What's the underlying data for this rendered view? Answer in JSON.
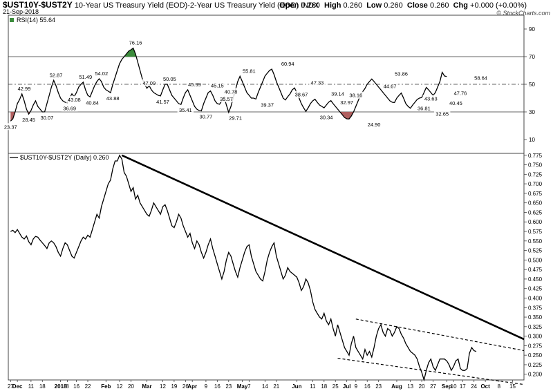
{
  "header": {
    "symbol": "$UST10Y-$UST2Y",
    "description": "10-Year US Treasury Yield (EOD)-2-Year US Treasury Yield (EOD)",
    "exchange": "INDX",
    "date": "21-Sep-2018",
    "open_label": "Open",
    "open": "0.260",
    "high_label": "High",
    "high": "0.260",
    "low_label": "Low",
    "low": "0.260",
    "close_label": "Close",
    "close": "0.260",
    "chg_label": "Chg",
    "chg": "+0.000 (+0.00%)",
    "brand": "© StockCharts.com"
  },
  "rsi_panel": {
    "legend": "RSI(14) 55.64",
    "colors": {
      "line": "#000000",
      "overbought": "#3c8c3c",
      "oversold": "#b06060"
    }
  },
  "price_panel": {
    "legend": "$UST10Y-$UST2Y (Daily) 0.260"
  },
  "chart_data": [
    {
      "type": "line",
      "title": "RSI(14) 55.64",
      "ylim": [
        0,
        100
      ],
      "y_ticks": [
        10,
        30,
        50,
        70,
        90
      ],
      "reference_lines": [
        30,
        50,
        70
      ],
      "grid": false,
      "annotations": [
        {
          "x": 0,
          "value": 23.37,
          "text": "23.37"
        },
        {
          "x": 6,
          "value": 42.99,
          "text": "42.99"
        },
        {
          "x": 8,
          "value": 28.45,
          "text": "28.45"
        },
        {
          "x": 16,
          "value": 30.07,
          "text": "30.07"
        },
        {
          "x": 20,
          "value": 52.87,
          "text": "52.87"
        },
        {
          "x": 26,
          "value": 36.69,
          "text": "36.69"
        },
        {
          "x": 28,
          "value": 43.08,
          "text": "43.08"
        },
        {
          "x": 33,
          "value": 51.49,
          "text": "51.49"
        },
        {
          "x": 36,
          "value": 40.84,
          "text": "40.84"
        },
        {
          "x": 40,
          "value": 54.02,
          "text": "54.02"
        },
        {
          "x": 45,
          "value": 43.88,
          "text": "43.88"
        },
        {
          "x": 55,
          "value": 76.16,
          "text": "76.16"
        },
        {
          "x": 61,
          "value": 47.09,
          "text": "47.09"
        },
        {
          "x": 67,
          "value": 41.57,
          "text": "41.57"
        },
        {
          "x": 70,
          "value": 50.05,
          "text": "50.05"
        },
        {
          "x": 77,
          "value": 35.41,
          "text": "35.41"
        },
        {
          "x": 81,
          "value": 45.99,
          "text": "45.99"
        },
        {
          "x": 86,
          "value": 30.77,
          "text": "30.77"
        },
        {
          "x": 91,
          "value": 45.15,
          "text": "45.15"
        },
        {
          "x": 95,
          "value": 35.57,
          "text": "35.57"
        },
        {
          "x": 97,
          "value": 40.78,
          "text": "40.78"
        },
        {
          "x": 99,
          "value": 29.71,
          "text": "29.71"
        },
        {
          "x": 105,
          "value": 55.81,
          "text": "55.81"
        },
        {
          "x": 113,
          "value": 39.37,
          "text": "39.37"
        },
        {
          "x": 122,
          "value": 60.94,
          "text": "60.94"
        },
        {
          "x": 128,
          "value": 38.67,
          "text": "38.67"
        },
        {
          "x": 135,
          "value": 47.33,
          "text": "47.33"
        },
        {
          "x": 139,
          "value": 30.34,
          "text": "30.34"
        },
        {
          "x": 144,
          "value": 39.14,
          "text": "39.14"
        },
        {
          "x": 148,
          "value": 32.97,
          "text": "32.97"
        },
        {
          "x": 152,
          "value": 38.16,
          "text": "38.16"
        },
        {
          "x": 160,
          "value": 24.9,
          "text": "24.90"
        },
        {
          "x": 167,
          "value": 44.67,
          "text": "44.67"
        },
        {
          "x": 172,
          "value": 53.86,
          "text": "53.86"
        },
        {
          "x": 182,
          "value": 36.81,
          "text": "36.81"
        },
        {
          "x": 185,
          "value": 43.63,
          "text": "43.63"
        },
        {
          "x": 190,
          "value": 32.65,
          "text": "32.65"
        },
        {
          "x": 196,
          "value": 40.45,
          "text": "40.45"
        },
        {
          "x": 198,
          "value": 47.76,
          "text": "47.76"
        },
        {
          "x": 207,
          "value": 58.64,
          "text": "58.64"
        }
      ],
      "series": [
        {
          "values": [
            23.37,
            25,
            30,
            36,
            39,
            42.99,
            38,
            32,
            28.45,
            31,
            35,
            38,
            34,
            32,
            30,
            30.07,
            36,
            42,
            48,
            52.87,
            49,
            44,
            40,
            38,
            37,
            36.69,
            40,
            43.08,
            41,
            44,
            48,
            50,
            51.49,
            46,
            42,
            40.84,
            45,
            49,
            52,
            54.02,
            52,
            48,
            46,
            45,
            43.88,
            50,
            55,
            60,
            65,
            68,
            70,
            72,
            74,
            75,
            76.16,
            72,
            66,
            60,
            54,
            50,
            47.09,
            49,
            46,
            44,
            43,
            42,
            41.57,
            46,
            50,
            50.05,
            46,
            42,
            40,
            38,
            36,
            35.41,
            40,
            44,
            45.99,
            42,
            38,
            34,
            32,
            31,
            30.77,
            36,
            40,
            44,
            45.15,
            42,
            38,
            36,
            35.57,
            38,
            40.78,
            35,
            29.71,
            34,
            40,
            46,
            52,
            55.81,
            52,
            48,
            44,
            42,
            40,
            40,
            39.37,
            44,
            48,
            52,
            56,
            58,
            60,
            60.94,
            57,
            52,
            48,
            44,
            40,
            38.67,
            41,
            43,
            46,
            47.33,
            44,
            40,
            36,
            33,
            30.34,
            33,
            36,
            38,
            39.14,
            37,
            35,
            34,
            32.97,
            35,
            37,
            38.16,
            36,
            34,
            32,
            30,
            28,
            26,
            25,
            24.9,
            27,
            30,
            34,
            38,
            42,
            44.67,
            47,
            50,
            52,
            53.86,
            52,
            50,
            48,
            46,
            44,
            42,
            40,
            38,
            37,
            36.81,
            40,
            42,
            43.63,
            40,
            36,
            34,
            32.65,
            35,
            37,
            39,
            40,
            40.45,
            44,
            47.76,
            46,
            44,
            42,
            44,
            48,
            52,
            58.64,
            56,
            55.64
          ]
        }
      ]
    },
    {
      "type": "line",
      "title": "$UST10Y-$UST2Y (Daily) 0.260",
      "ylim": [
        0.185,
        0.78
      ],
      "y_ticks": [
        0.2,
        0.225,
        0.25,
        0.275,
        0.3,
        0.325,
        0.35,
        0.375,
        0.4,
        0.425,
        0.45,
        0.475,
        0.5,
        0.525,
        0.55,
        0.575,
        0.6,
        0.625,
        0.65,
        0.675,
        0.7,
        0.725,
        0.75,
        0.775
      ],
      "y_tick_labels": [
        "0.200",
        "0.225",
        "0.250",
        "0.275",
        "0.300",
        "0.325",
        "0.350",
        "0.375",
        "0.400",
        "0.425",
        "0.450",
        "0.475",
        "0.500",
        "0.525",
        "0.550",
        "0.575",
        "0.600",
        "0.625",
        "0.650",
        "0.675",
        "0.700",
        "0.725",
        "0.750",
        "0.775"
      ],
      "x_tick_labels": [
        {
          "x": 0,
          "label": "27"
        },
        {
          "x": 3,
          "label": "Dec"
        },
        {
          "x": 9,
          "label": "11"
        },
        {
          "x": 14,
          "label": "18"
        },
        {
          "x": 22,
          "label": "2018"
        },
        {
          "x": 25,
          "label": "8"
        },
        {
          "x": 29,
          "label": "16"
        },
        {
          "x": 34,
          "label": "22"
        },
        {
          "x": 42,
          "label": "Feb"
        },
        {
          "x": 48,
          "label": "12"
        },
        {
          "x": 53,
          "label": "20"
        },
        {
          "x": 60,
          "label": "Mar"
        },
        {
          "x": 67,
          "label": "12"
        },
        {
          "x": 72,
          "label": "19"
        },
        {
          "x": 77,
          "label": "26"
        },
        {
          "x": 80,
          "label": "Apr"
        },
        {
          "x": 86,
          "label": "9"
        },
        {
          "x": 91,
          "label": "16"
        },
        {
          "x": 96,
          "label": "23"
        },
        {
          "x": 102,
          "label": "May"
        },
        {
          "x": 105,
          "label": "7"
        },
        {
          "x": 112,
          "label": "14"
        },
        {
          "x": 117,
          "label": "21"
        },
        {
          "x": 126,
          "label": "Jun"
        },
        {
          "x": 133,
          "label": "11"
        },
        {
          "x": 138,
          "label": "18"
        },
        {
          "x": 143,
          "label": "25"
        },
        {
          "x": 148,
          "label": "Jul"
        },
        {
          "x": 152,
          "label": "9"
        },
        {
          "x": 157,
          "label": "16"
        },
        {
          "x": 162,
          "label": "23"
        },
        {
          "x": 170,
          "label": "Aug"
        },
        {
          "x": 176,
          "label": "13"
        },
        {
          "x": 181,
          "label": "20"
        },
        {
          "x": 186,
          "label": "27"
        },
        {
          "x": 192,
          "label": "Sep"
        },
        {
          "x": 195,
          "label": "10"
        },
        {
          "x": 199,
          "label": "17"
        },
        {
          "x": 204,
          "label": "24"
        },
        {
          "x": 209,
          "label": "Oct"
        },
        {
          "x": 215,
          "label": "8"
        },
        {
          "x": 221,
          "label": "15"
        }
      ],
      "x_range": [
        -1,
        226
      ],
      "trendlines": [
        {
          "style": "solid",
          "x": [
            49,
            226
          ],
          "y": [
            0.775,
            0.292
          ]
        },
        {
          "style": "dashed",
          "x": [
            152,
            226
          ],
          "y": [
            0.345,
            0.262
          ]
        },
        {
          "style": "dashed",
          "x": [
            144,
            226
          ],
          "y": [
            0.242,
            0.173
          ]
        }
      ],
      "series": [
        {
          "values": [
            0.575,
            0.578,
            0.572,
            0.58,
            0.57,
            0.56,
            0.555,
            0.563,
            0.548,
            0.54,
            0.555,
            0.562,
            0.56,
            0.552,
            0.545,
            0.538,
            0.53,
            0.545,
            0.55,
            0.545,
            0.535,
            0.52,
            0.51,
            0.53,
            0.545,
            0.54,
            0.525,
            0.51,
            0.505,
            0.52,
            0.535,
            0.55,
            0.56,
            0.555,
            0.565,
            0.56,
            0.58,
            0.6,
            0.62,
            0.61,
            0.64,
            0.66,
            0.68,
            0.7,
            0.71,
            0.74,
            0.76,
            0.76,
            0.775,
            0.765,
            0.73,
            0.72,
            0.7,
            0.68,
            0.69,
            0.66,
            0.67,
            0.65,
            0.64,
            0.63,
            0.62,
            0.615,
            0.63,
            0.65,
            0.64,
            0.63,
            0.62,
            0.64,
            0.645,
            0.63,
            0.61,
            0.59,
            0.585,
            0.6,
            0.62,
            0.61,
            0.59,
            0.575,
            0.56,
            0.57,
            0.545,
            0.53,
            0.55,
            0.54,
            0.52,
            0.505,
            0.52,
            0.54,
            0.555,
            0.53,
            0.51,
            0.49,
            0.47,
            0.45,
            0.47,
            0.5,
            0.52,
            0.51,
            0.49,
            0.47,
            0.455,
            0.48,
            0.5,
            0.52,
            0.535,
            0.54,
            0.51,
            0.49,
            0.47,
            0.46,
            0.45,
            0.445,
            0.47,
            0.5,
            0.52,
            0.535,
            0.545,
            0.51,
            0.49,
            0.47,
            0.45,
            0.46,
            0.48,
            0.47,
            0.465,
            0.46,
            0.455,
            0.44,
            0.42,
            0.43,
            0.45,
            0.44,
            0.42,
            0.39,
            0.37,
            0.36,
            0.35,
            0.345,
            0.36,
            0.34,
            0.33,
            0.345,
            0.32,
            0.3,
            0.33,
            0.31,
            0.29,
            0.27,
            0.26,
            0.25,
            0.28,
            0.3,
            0.27,
            0.26,
            0.25,
            0.24,
            0.265,
            0.25,
            0.26,
            0.245,
            0.27,
            0.3,
            0.32,
            0.33,
            0.31,
            0.3,
            0.32,
            0.315,
            0.3,
            0.31,
            0.325,
            0.32,
            0.305,
            0.295,
            0.28,
            0.27,
            0.26,
            0.255,
            0.25,
            0.24,
            0.22,
            0.205,
            0.185,
            0.21,
            0.23,
            0.24,
            0.22,
            0.21,
            0.225,
            0.24,
            0.24,
            0.24,
            0.235,
            0.225,
            0.21,
            0.22,
            0.235,
            0.24,
            0.215,
            0.21,
            0.21,
            0.215,
            0.255,
            0.27,
            0.262,
            0.26
          ]
        }
      ]
    }
  ]
}
